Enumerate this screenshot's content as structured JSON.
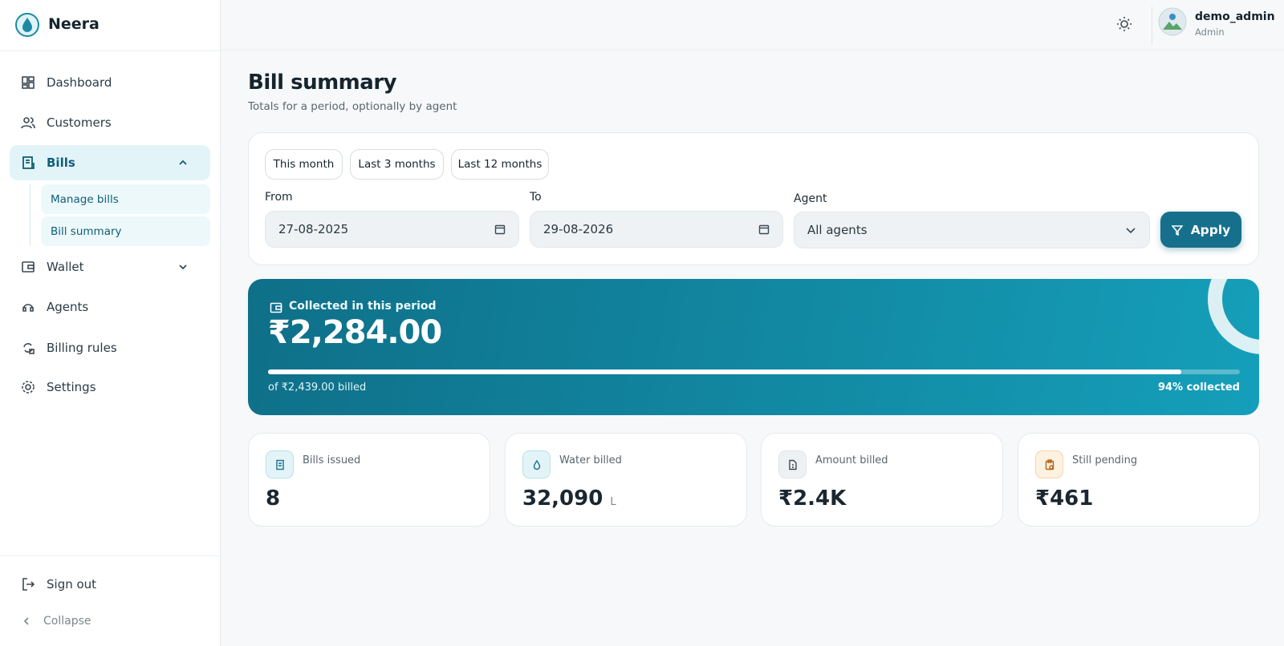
{
  "brand": "Neera",
  "user": {
    "name": "demo_admin",
    "role": "Admin"
  },
  "nav": {
    "items": [
      "Dashboard",
      "Customers",
      "Bills",
      "Wallet",
      "Agents",
      "Billing rules",
      "Settings"
    ],
    "bills_children": [
      "Manage bills",
      "Bill summary"
    ],
    "sign_out": "Sign out",
    "collapse": "Collapse"
  },
  "page": {
    "title": "Bill summary",
    "subtitle": "Totals for a period, optionally by agent"
  },
  "filters": {
    "presets": [
      "This month",
      "Last 3 months",
      "Last 12 months"
    ],
    "from_label": "From",
    "from_value": "27-08-2025",
    "to_label": "To",
    "to_value": "29-08-2026",
    "agent_label": "Agent",
    "agent_value": "All agents",
    "apply": "Apply"
  },
  "collected": {
    "label": "Collected in this period",
    "amount": "₹2,284.00",
    "billed": "of ₹2,439.00 billed",
    "progress": {
      "value": 94,
      "label": "94% collected"
    }
  },
  "stats": [
    {
      "label": "Bills issued",
      "value": "8"
    },
    {
      "label": "Water billed",
      "value": "32,090",
      "unit": "L"
    },
    {
      "label": "Amount billed",
      "value": "₹2.4K"
    },
    {
      "label": "Still pending",
      "value": "₹461"
    }
  ]
}
